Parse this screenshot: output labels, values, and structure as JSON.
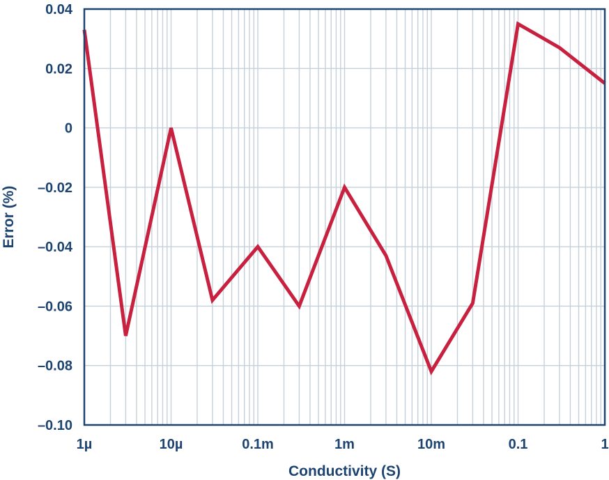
{
  "chart_data": {
    "type": "line",
    "xlabel": "Conductivity (S)",
    "ylabel": "Error (%)",
    "x_scale": "log",
    "xlim": [
      1e-06,
      1
    ],
    "ylim": [
      -0.1,
      0.04
    ],
    "grid": true,
    "x_ticks": [
      {
        "value": 1e-06,
        "label": "1µ"
      },
      {
        "value": 1e-05,
        "label": "10µ"
      },
      {
        "value": 0.0001,
        "label": "0.1m"
      },
      {
        "value": 0.001,
        "label": "1m"
      },
      {
        "value": 0.01,
        "label": "10m"
      },
      {
        "value": 0.1,
        "label": "0.1"
      },
      {
        "value": 1,
        "label": "1"
      }
    ],
    "y_ticks": [
      {
        "value": 0.04,
        "label": "0.04"
      },
      {
        "value": 0.02,
        "label": "0.02"
      },
      {
        "value": 0,
        "label": "0"
      },
      {
        "value": -0.02,
        "label": "–0.02"
      },
      {
        "value": -0.04,
        "label": "–0.04"
      },
      {
        "value": -0.06,
        "label": "–0.06"
      },
      {
        "value": -0.08,
        "label": "–0.08"
      },
      {
        "value": -0.1,
        "label": "–0.10"
      }
    ],
    "series": [
      {
        "color": "#c8203f",
        "x": [
          1e-06,
          3e-06,
          1e-05,
          3e-05,
          0.0001,
          0.0003,
          0.001,
          0.003,
          0.01,
          0.03,
          0.1,
          0.3,
          1
        ],
        "y": [
          0.033,
          -0.07,
          0.0,
          -0.058,
          -0.04,
          -0.06,
          -0.02,
          -0.043,
          -0.082,
          -0.059,
          0.035,
          0.027,
          0.015
        ]
      }
    ],
    "colors": {
      "axis": "#1d4370",
      "grid": "#c6d0da",
      "text": "#1d4370"
    }
  }
}
